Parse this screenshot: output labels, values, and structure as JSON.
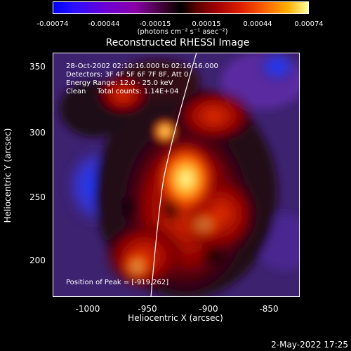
{
  "colorbar": {
    "tick_labels": [
      "-0.00074",
      "-0.00044",
      "-0.00015",
      "0.00015",
      "0.00044",
      "0.00074"
    ],
    "unit": "(photons cm⁻² s⁻¹ asec⁻²)"
  },
  "title": "Reconstructed RHESSI Image",
  "info": {
    "line1": "28-Oct-2002 02:10:16.000 to 02:16:16.000",
    "line2": "Detectors: 3F 4F 5F 6F 7F 8F, Att 0",
    "line3": "Energy Range: 12.0 - 25.0 keV",
    "line4": "Clean     Total counts: 1.14E+04",
    "peak": "Position of Peak = [-919,262]"
  },
  "axes": {
    "xlabel": "Heliocentric X (arcsec)",
    "ylabel": "Heliocentric Y (arcsec)",
    "xticks": [
      "-1000",
      "-950",
      "-900",
      "-850"
    ],
    "yticks": [
      "350",
      "300",
      "250",
      "200"
    ]
  },
  "timestamp": "2-May-2022 17:25"
}
